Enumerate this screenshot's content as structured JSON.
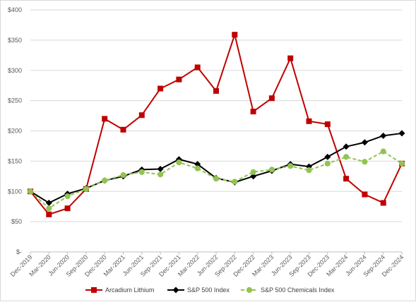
{
  "chart_data": {
    "type": "line",
    "title": "",
    "xlabel": "",
    "ylabel": "",
    "categories": [
      "Dec-2019",
      "Mar-2020",
      "Jun-2020",
      "Sep-2020",
      "Dec-2020",
      "Mar-2021",
      "Jun-2021",
      "Sep-2021",
      "Dec-2021",
      "Mar-2022",
      "Jun-2022",
      "Sep-2022",
      "Dec-2022",
      "Mar-2023",
      "Jun-2023",
      "Sep-2023",
      "Dec-2023",
      "Mar-2024",
      "Jun-2024",
      "Sep-2024",
      "Dec-2024"
    ],
    "ylim": [
      0,
      400
    ],
    "yticks": [
      0,
      50,
      100,
      150,
      200,
      250,
      300,
      350,
      400
    ],
    "ytick_labels": [
      "$-",
      "$50",
      "$100",
      "$150",
      "$200",
      "$250",
      "$300",
      "$350",
      "$400"
    ],
    "grid": true,
    "legend_position": "bottom",
    "series": [
      {
        "name": "Arcadium Lithium",
        "color": "#c00000",
        "marker": "square",
        "dash": "solid",
        "values": [
          100,
          62,
          72,
          104,
          220,
          202,
          226,
          270,
          285,
          305,
          266,
          359,
          232,
          254,
          320,
          216,
          211,
          121,
          95,
          81,
          146
        ]
      },
      {
        "name": "S&P 500 Index",
        "color": "#000000",
        "marker": "diamond",
        "dash": "solid",
        "values": [
          100,
          81,
          96,
          105,
          118,
          125,
          136,
          137,
          153,
          145,
          122,
          115,
          125,
          134,
          145,
          141,
          157,
          174,
          181,
          192,
          196
        ]
      },
      {
        "name": "S&P 500 Chemicals Index",
        "color": "#92c353",
        "marker": "circle",
        "dash": "dashed",
        "values": [
          100,
          72,
          92,
          104,
          118,
          127,
          132,
          128,
          148,
          138,
          121,
          116,
          132,
          136,
          142,
          135,
          146,
          157,
          149,
          166,
          146
        ]
      }
    ]
  }
}
